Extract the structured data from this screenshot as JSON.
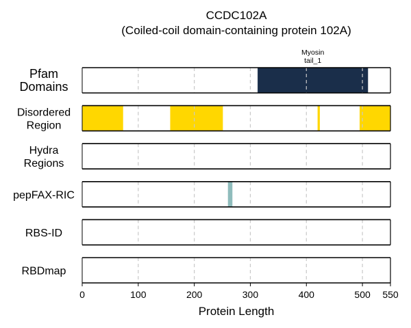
{
  "chart_data": {
    "type": "bar",
    "title_lines": [
      "CCDC102A",
      "(Coiled-coil domain-containing protein 102A)"
    ],
    "xlabel": "Protein Length",
    "xlim": [
      0,
      550
    ],
    "xticks": [
      0,
      100,
      200,
      300,
      400,
      500,
      550
    ],
    "grid_x": [
      100,
      200,
      300,
      400,
      500
    ],
    "grid": true,
    "tracks": [
      {
        "label": [
          "Pfam",
          "Domains"
        ],
        "color": "#1a2e4a",
        "segments": [
          {
            "start": 313,
            "end": 510,
            "label": [
              "Myosin",
              "tail_1"
            ]
          }
        ]
      },
      {
        "label": [
          "Disordered",
          "Region"
        ],
        "color": "#ffd700",
        "segments": [
          {
            "start": 0,
            "end": 73
          },
          {
            "start": 157,
            "end": 251
          },
          {
            "start": 420,
            "end": 424
          },
          {
            "start": 495,
            "end": 550
          }
        ]
      },
      {
        "label": [
          "Hydra",
          "Regions"
        ],
        "color": "#4a90c2",
        "segments": []
      },
      {
        "label": [
          "pepFAX-RIC"
        ],
        "color": "#8fbcbc",
        "segments": [
          {
            "start": 260,
            "end": 268
          }
        ]
      },
      {
        "label": [
          "RBS-ID"
        ],
        "color": "#c0392b",
        "segments": []
      },
      {
        "label": [
          "RBDmap"
        ],
        "color": "#7d3c98",
        "segments": []
      }
    ]
  }
}
